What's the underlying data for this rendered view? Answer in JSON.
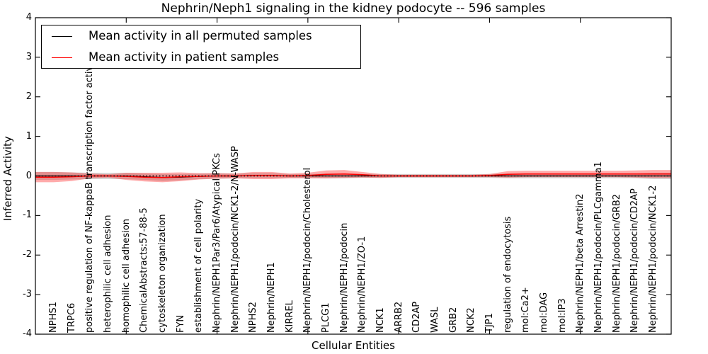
{
  "chart_data": {
    "type": "line",
    "title": "Nephrin/Neph1 signaling in the kidney podocyte -- 596 samples",
    "xlabel": "Cellular Entities",
    "ylabel": "Inferred Activity",
    "ylim": [
      -4,
      4
    ],
    "yticks": [
      4,
      3,
      2,
      1,
      0,
      -1,
      -2,
      -3,
      -4
    ],
    "xticks_major": [
      5,
      10,
      15,
      20,
      25,
      30
    ],
    "grid": false,
    "legend_position": "upper left",
    "zero_line": {
      "value": 0,
      "style": "dotted",
      "color": "#000000"
    },
    "categories": [
      "NPHS1",
      "TRPC6",
      "positive regulation of NF-kappaB transcription factor activity",
      "heterophilic cell adhesion",
      "homophilic cell adhesion",
      "ChemicalAbstracts:57-88-5",
      "cytoskeleton organization",
      "FYN",
      "establishment of cell polarity",
      "Nephrin/NEPH1Par3/Par6/Atypical PKCs",
      "Nephrin/NEPH1/podocin/NCK1-2/N-WASP",
      "NPHS2",
      "Nephrin/NEPH1",
      "KIRREL",
      "Nephrin/NEPH1/podocin/Cholesterol",
      "PLCG1",
      "Nephrin/NEPH1/podocin",
      "Nephrin/NEPH1/ZO-1",
      "NCK1",
      "ARRB2",
      "CD2AP",
      "WASL",
      "GRB2",
      "NCK2",
      "TJP1",
      "regulation of endocytosis",
      "mol:Ca2+",
      "mol:DAG",
      "mol:IP3",
      "Nephrin/NEPH1/beta Arrestin2",
      "Nephrin/NEPH1/podocin/PLCgamma1",
      "Nephrin/NEPH1/podocin/GRB2",
      "Nephrin/NEPH1/podocin/CD2AP",
      "Nephrin/NEPH1/podocin/NCK1-2"
    ],
    "series": [
      {
        "name": "Mean activity in all permuted samples",
        "color": "#000000",
        "band_color": "rgba(0,0,0,0.16)",
        "values": [
          0.0,
          0.0,
          0.0,
          0.0,
          0.0,
          -0.02,
          -0.04,
          -0.03,
          -0.01,
          0.0,
          0.0,
          0.01,
          0.01,
          0.0,
          0.0,
          0.0,
          0.0,
          0.0,
          0.0,
          0.0,
          0.0,
          0.0,
          0.0,
          0.0,
          0.0,
          0.0,
          0.0,
          0.0,
          0.0,
          0.0,
          0.0,
          0.0,
          0.0,
          0.0
        ],
        "std": [
          0.1,
          0.09,
          0.08,
          0.08,
          0.08,
          0.08,
          0.09,
          0.08,
          0.07,
          0.07,
          0.06,
          0.06,
          0.06,
          0.05,
          0.05,
          0.06,
          0.06,
          0.05,
          0.05,
          0.05,
          0.05,
          0.05,
          0.05,
          0.05,
          0.05,
          0.06,
          0.06,
          0.06,
          0.06,
          0.06,
          0.06,
          0.06,
          0.06,
          0.08
        ]
      },
      {
        "name": "Mean activity in patient samples",
        "color": "#ff0000",
        "band_color": "rgba(255,0,0,0.33)",
        "values": [
          -0.03,
          -0.02,
          0.0,
          0.0,
          -0.01,
          -0.03,
          -0.04,
          -0.02,
          -0.01,
          0.0,
          0.0,
          0.01,
          0.01,
          0.0,
          0.01,
          0.04,
          0.05,
          0.03,
          0.0,
          0.0,
          0.0,
          0.0,
          0.0,
          0.0,
          0.01,
          0.04,
          0.05,
          0.05,
          0.05,
          0.05,
          0.05,
          0.05,
          0.05,
          0.05
        ],
        "std": [
          0.13,
          0.11,
          0.06,
          0.04,
          0.09,
          0.11,
          0.12,
          0.11,
          0.08,
          0.07,
          0.06,
          0.09,
          0.09,
          0.06,
          0.07,
          0.1,
          0.1,
          0.07,
          0.05,
          0.03,
          0.03,
          0.03,
          0.03,
          0.03,
          0.04,
          0.08,
          0.08,
          0.08,
          0.08,
          0.08,
          0.08,
          0.08,
          0.09,
          0.1
        ]
      }
    ]
  },
  "legend": {
    "items": [
      {
        "label": "Mean activity in all permuted samples",
        "color": "#000000"
      },
      {
        "label": "Mean activity in patient samples",
        "color": "#ff0000"
      }
    ]
  }
}
